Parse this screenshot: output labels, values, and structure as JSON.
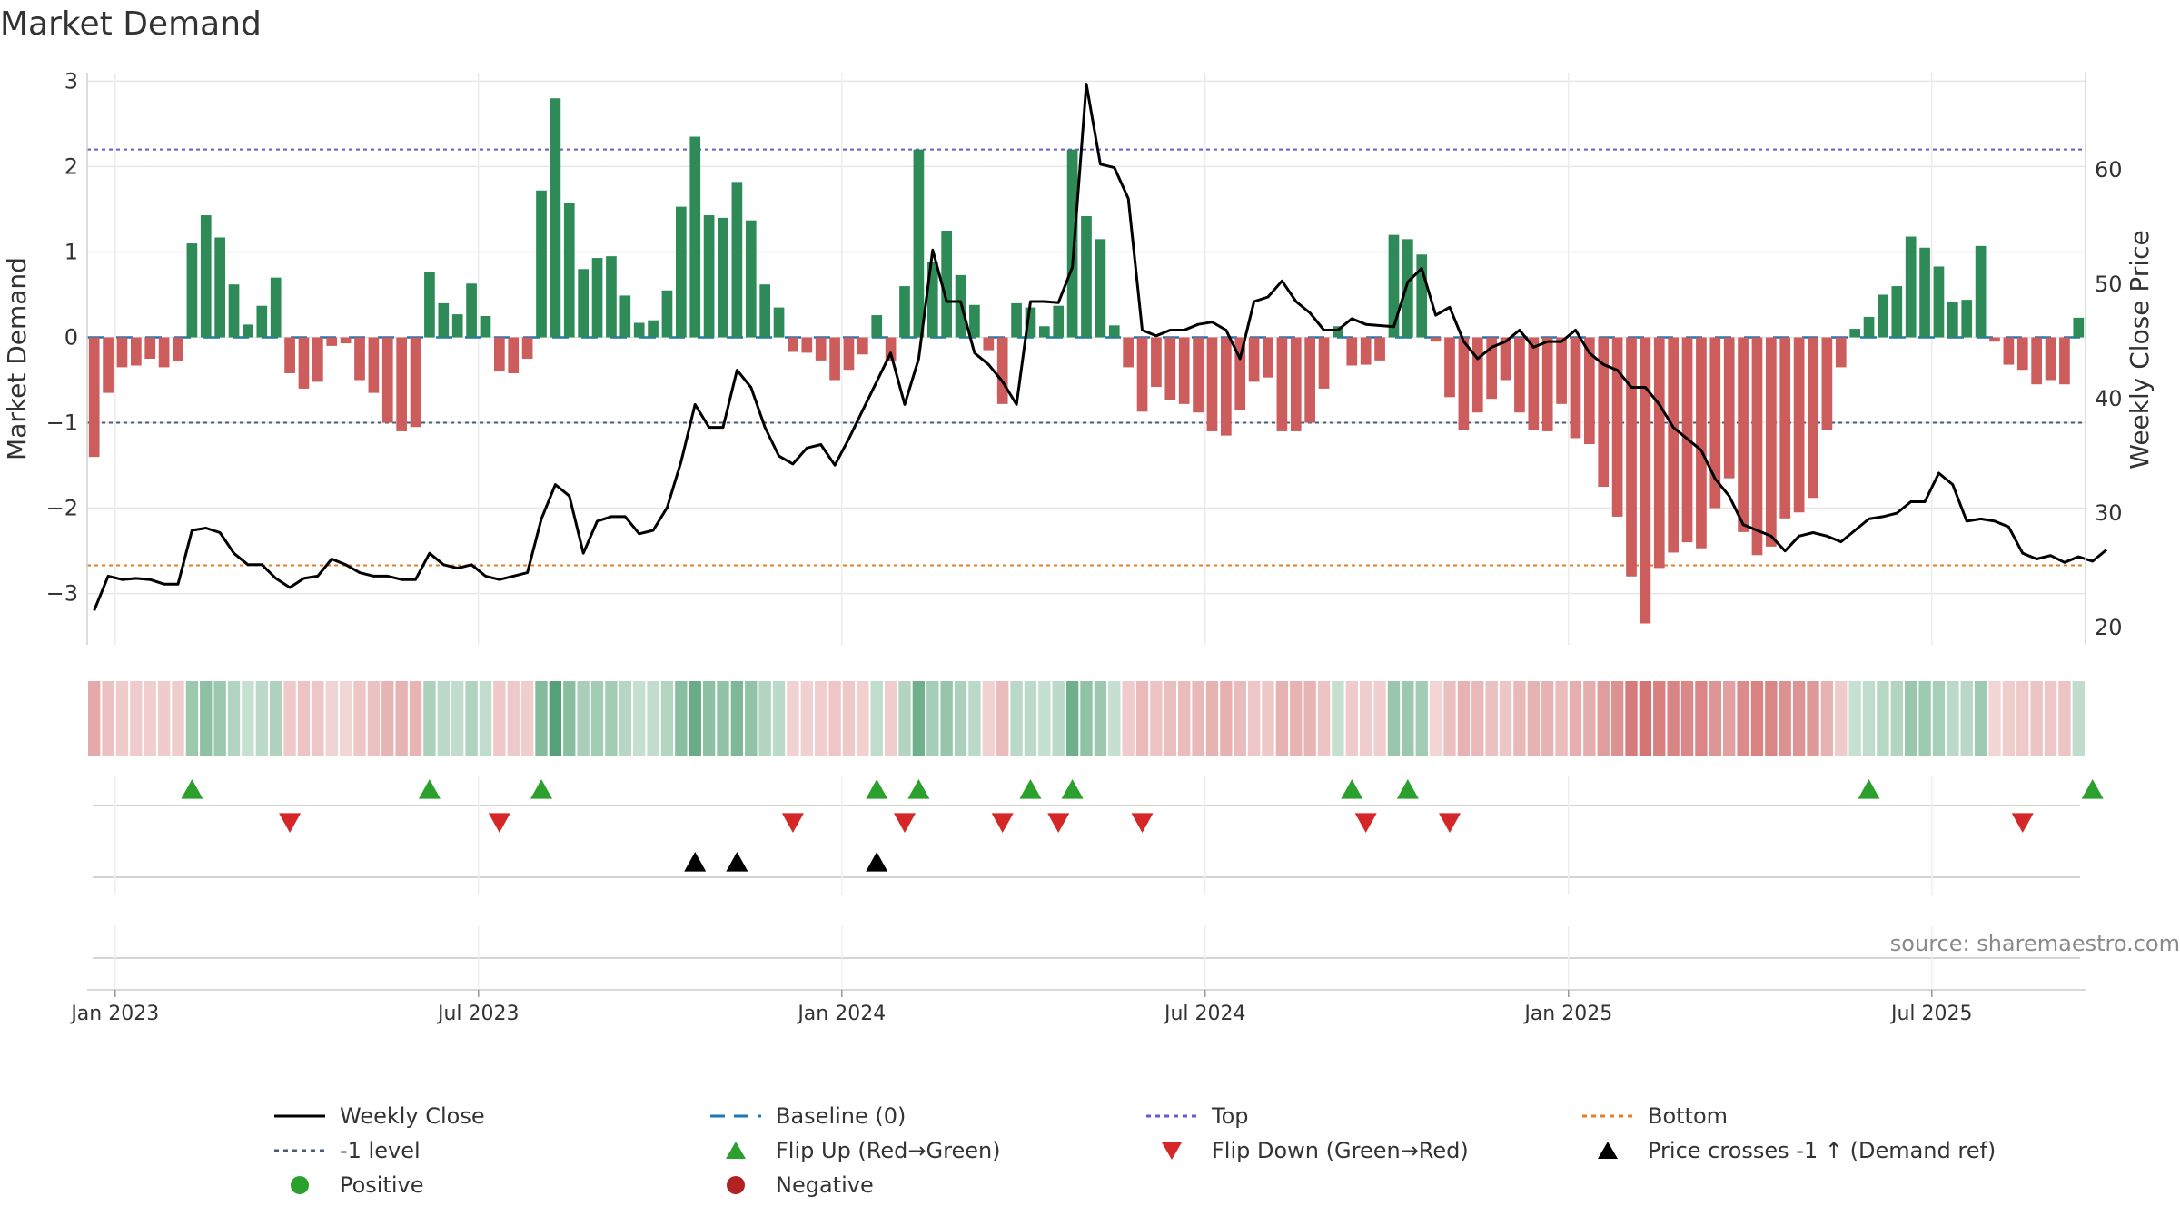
{
  "title": "Market Demand",
  "colors": {
    "pos_bar": "#2e8b57",
    "neg_bar": "#cd5c5c",
    "price": "#000000",
    "baseline": "#1f77b4",
    "top": "#6a5acd",
    "bottom": "#e67e22",
    "minus1": "#4a5a70",
    "flip_up": "#2ca02c",
    "flip_down": "#d62728",
    "cross": "#000000",
    "positive": "#2ca02c",
    "negative": "#b22222",
    "source": "#8a8a8a"
  },
  "source_text": "source: sharemaestro.com",
  "chart_data": {
    "type": "bar",
    "title": "Market Demand",
    "ylabel_left": "Market Demand",
    "ylabel_right": "Weekly Close Price",
    "ylim_left": [
      -3.6,
      3.1
    ],
    "ylim_right": [
      18.5,
      68.5
    ],
    "yticks_left": [
      3,
      2,
      1,
      0,
      -1,
      -2,
      -3
    ],
    "ytick_labels_left": [
      "3",
      "2",
      "1",
      "0",
      "−1",
      "−2",
      "−3"
    ],
    "yticks_right": [
      20,
      30,
      40,
      50,
      60
    ],
    "ytick_labels_right": [
      "20",
      "30",
      "40",
      "50",
      "60"
    ],
    "x_ticks": [
      {
        "week": 2,
        "label": "Jan 2023"
      },
      {
        "week": 28,
        "label": "Jul 2023"
      },
      {
        "week": 54,
        "label": "Jan 2024"
      },
      {
        "week": 80,
        "label": "Jul 2024"
      },
      {
        "week": 106,
        "label": "Jan 2025"
      },
      {
        "week": 132,
        "label": "Jul 2025"
      }
    ],
    "reference_lines": {
      "baseline": 0,
      "top": 2.2,
      "minus1": -1,
      "bottom": -2.67
    },
    "demand": [
      -1.4,
      -0.65,
      -0.35,
      -0.33,
      -0.25,
      -0.35,
      -0.28,
      1.1,
      1.43,
      1.17,
      0.62,
      0.15,
      0.37,
      0.7,
      -0.42,
      -0.6,
      -0.52,
      -0.1,
      -0.07,
      -0.5,
      -0.65,
      -1.0,
      -1.1,
      -1.05,
      0.77,
      0.4,
      0.27,
      0.63,
      0.25,
      -0.4,
      -0.42,
      -0.25,
      1.72,
      2.8,
      1.57,
      0.8,
      0.93,
      0.95,
      0.49,
      0.17,
      0.2,
      0.55,
      1.53,
      2.35,
      1.43,
      1.4,
      1.82,
      1.37,
      0.62,
      0.35,
      -0.17,
      -0.18,
      -0.27,
      -0.5,
      -0.38,
      -0.2,
      0.26,
      -0.28,
      0.6,
      2.2,
      0.88,
      1.25,
      0.73,
      0.38,
      -0.15,
      -0.78,
      0.4,
      0.35,
      0.13,
      0.37,
      2.2,
      1.42,
      1.15,
      0.14,
      -0.35,
      -0.87,
      -0.58,
      -0.73,
      -0.78,
      -0.88,
      -1.1,
      -1.15,
      -0.85,
      -0.52,
      -0.47,
      -1.1,
      -1.1,
      -1.0,
      -0.6,
      0.13,
      -0.33,
      -0.32,
      -0.27,
      1.2,
      1.15,
      0.97,
      -0.05,
      -0.7,
      -1.08,
      -0.88,
      -0.72,
      -0.5,
      -0.88,
      -1.08,
      -1.1,
      -0.78,
      -1.18,
      -1.25,
      -1.75,
      -2.1,
      -2.8,
      -3.35,
      -2.7,
      -2.52,
      -2.4,
      -2.47,
      -2.0,
      -1.65,
      -2.28,
      -2.55,
      -2.45,
      -2.12,
      -2.05,
      -1.88,
      -1.08,
      -0.35,
      0.1,
      0.24,
      0.5,
      0.6,
      1.18,
      1.05,
      0.83,
      0.42,
      0.44,
      1.07,
      -0.05,
      -0.32,
      -0.38,
      -0.55,
      -0.5,
      -0.55,
      0.23
    ],
    "price": [
      21.5,
      24.5,
      24.2,
      24.3,
      24.2,
      23.8,
      23.8,
      28.5,
      28.7,
      28.3,
      26.5,
      25.5,
      25.5,
      24.3,
      23.5,
      24.3,
      24.5,
      26.0,
      25.5,
      24.8,
      24.5,
      24.5,
      24.2,
      24.2,
      26.5,
      25.5,
      25.2,
      25.5,
      24.5,
      24.2,
      24.5,
      24.8,
      29.5,
      32.5,
      31.5,
      26.5,
      29.3,
      29.7,
      29.7,
      28.2,
      28.5,
      30.5,
      34.5,
      39.5,
      37.5,
      37.5,
      42.5,
      41.0,
      37.5,
      35.0,
      34.3,
      35.7,
      36.0,
      34.2,
      36.5,
      39.0,
      41.5,
      44.0,
      39.5,
      43.5,
      53.0,
      48.5,
      48.5,
      44.0,
      43.0,
      41.5,
      39.5,
      48.5,
      48.5,
      48.4,
      51.5,
      67.5,
      60.5,
      60.2,
      57.5,
      46.0,
      45.5,
      46.0,
      46.0,
      46.5,
      46.7,
      46.0,
      43.5,
      48.5,
      48.9,
      50.3,
      48.5,
      47.5,
      46.0,
      46.0,
      47.0,
      46.5,
      46.4,
      46.3,
      50.2,
      51.4,
      47.3,
      48.0,
      45.0,
      43.5,
      44.5,
      45.0,
      46.0,
      44.5,
      45.0,
      45.0,
      46.0,
      44.0,
      43.0,
      42.5,
      41.0,
      41.0,
      39.5,
      37.5,
      36.5,
      35.5,
      33.0,
      31.5,
      29.0,
      28.5,
      28.0,
      26.7,
      28.0,
      28.3,
      28.0,
      27.5,
      28.5,
      29.5,
      29.7,
      30.0,
      31.0,
      31.0,
      33.5,
      32.5,
      29.3,
      29.5,
      29.3,
      28.8,
      26.5,
      26.0,
      26.3,
      25.7,
      26.2,
      25.8,
      26.8
    ],
    "flip_up_weeks": [
      7,
      24,
      32,
      56,
      59,
      67,
      70,
      90,
      94,
      127,
      143
    ],
    "flip_down_weeks": [
      14,
      29,
      50,
      58,
      65,
      69,
      75,
      91,
      97,
      138
    ],
    "price_cross_weeks": [
      43,
      46,
      56
    ]
  },
  "legend": [
    {
      "label": "Weekly Close",
      "symbol": "line-solid",
      "color": "#000000"
    },
    {
      "label": "Baseline (0)",
      "symbol": "line-dashed",
      "color": "#1f77b4"
    },
    {
      "label": "Top",
      "symbol": "line-dotted",
      "color": "#6a5acd"
    },
    {
      "label": "Bottom",
      "symbol": "line-dotted",
      "color": "#e67e22"
    },
    {
      "label": "-1 level",
      "symbol": "line-dotted",
      "color": "#4a5a70"
    },
    {
      "label": "Flip Up (Red→Green)",
      "symbol": "triangle-up",
      "color": "#2ca02c"
    },
    {
      "label": "Flip Down (Green→Red)",
      "symbol": "triangle-down",
      "color": "#d62728"
    },
    {
      "label": "Price crosses -1 ↑ (Demand ref)",
      "symbol": "triangle-up",
      "color": "#000000"
    },
    {
      "label": "Positive",
      "symbol": "circle",
      "color": "#2ca02c"
    },
    {
      "label": "Negative",
      "symbol": "circle",
      "color": "#b22222"
    }
  ]
}
